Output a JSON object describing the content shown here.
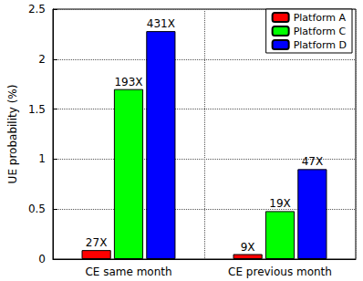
{
  "chart_data": {
    "type": "bar",
    "categories": [
      "CE same month",
      "CE previous month"
    ],
    "ylabel": "UE probability (%)",
    "series": [
      {
        "name": "Platform A",
        "color": "#ff0000",
        "values": [
          0.09,
          0.05
        ],
        "annotations": [
          "27X",
          "9X"
        ]
      },
      {
        "name": "Platform C",
        "color": "#00ff00",
        "values": [
          1.7,
          0.48
        ],
        "annotations": [
          "193X",
          "19X"
        ]
      },
      {
        "name": "Platform D",
        "color": "#0000ff",
        "values": [
          2.28,
          0.9
        ],
        "annotations": [
          "431X",
          "47X"
        ]
      }
    ],
    "ylim": [
      0,
      2.5
    ],
    "yticks": [
      0,
      0.5,
      1,
      1.5,
      2,
      2.5
    ],
    "grid": true,
    "legend": "upper right"
  }
}
